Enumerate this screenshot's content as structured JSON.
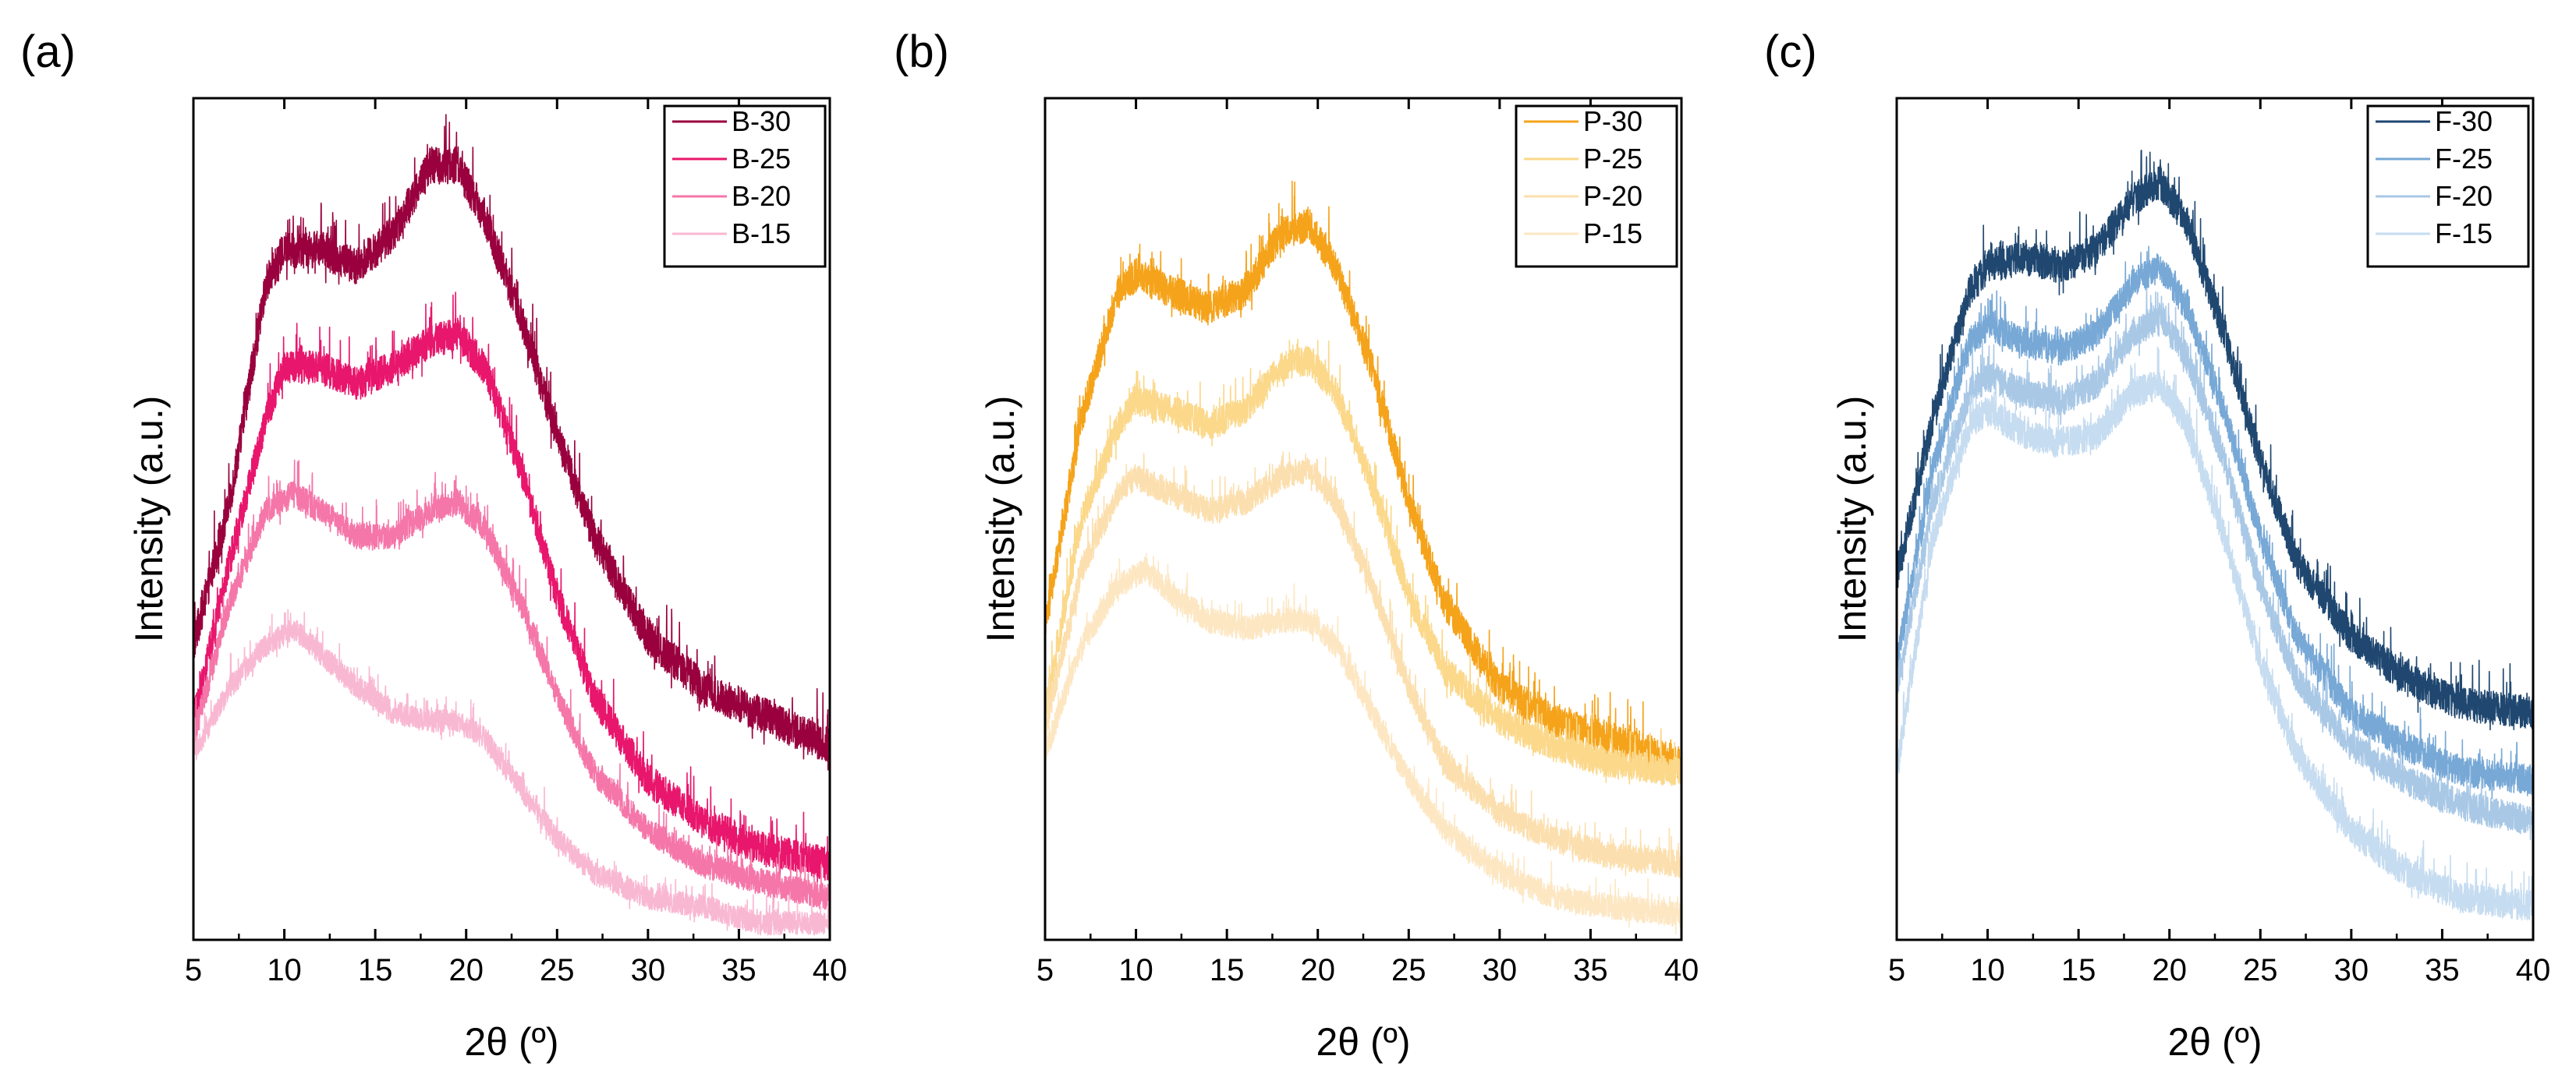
{
  "chart_data": [
    {
      "panel_label": "(a)",
      "type": "line",
      "xlabel": "2θ (º)",
      "ylabel": "Intensity (a.u.)",
      "xlim": [
        5,
        40
      ],
      "ylim": [
        0,
        100
      ],
      "xticks": [
        5,
        10,
        15,
        20,
        25,
        30,
        35,
        40
      ],
      "y_ticks_shown": false,
      "legend_position": "top-right",
      "series": [
        {
          "name": "B-30",
          "color": "#99003d",
          "x": [
            5,
            7,
            9,
            10,
            12,
            14,
            16,
            18,
            19.5,
            21,
            23,
            25,
            27,
            30,
            33,
            36,
            40
          ],
          "y": [
            35,
            52,
            78,
            82,
            82,
            80,
            84,
            92,
            92,
            86,
            74,
            60,
            48,
            36,
            30,
            27,
            23
          ],
          "noise": 2.2
        },
        {
          "name": "B-25",
          "color": "#e8166c",
          "x": [
            5,
            7,
            9,
            10,
            12,
            14,
            16,
            18,
            19.5,
            21,
            23,
            25,
            27,
            30,
            33,
            36,
            40
          ],
          "y": [
            26,
            45,
            62,
            68,
            68,
            66,
            68,
            71,
            72,
            68,
            56,
            41,
            29,
            19,
            14,
            11,
            9
          ],
          "noise": 2.0
        },
        {
          "name": "B-20",
          "color": "#f576a9",
          "x": [
            5,
            7,
            9,
            10.5,
            12,
            14,
            16,
            18,
            19.5,
            21,
            23,
            25,
            27,
            30,
            33,
            36,
            40
          ],
          "y": [
            24,
            40,
            51,
            53,
            51,
            48,
            48,
            51,
            52,
            49,
            40,
            29,
            20,
            13,
            9,
            7,
            5
          ],
          "noise": 1.6
        },
        {
          "name": "B-15",
          "color": "#f9b8d2",
          "x": [
            5,
            7,
            9,
            10.5,
            12,
            14,
            16,
            18,
            19.5,
            21,
            23,
            25,
            27,
            30,
            33,
            36,
            40
          ],
          "y": [
            22,
            30,
            35,
            37,
            34,
            30,
            27,
            26,
            26,
            24,
            18,
            12,
            8,
            5,
            4,
            2,
            2
          ],
          "noise": 1.4
        }
      ]
    },
    {
      "panel_label": "(b)",
      "type": "line",
      "xlabel": "2θ (º)",
      "ylabel": "Intensity (a.u.)",
      "xlim": [
        5,
        40
      ],
      "ylim": [
        0,
        100
      ],
      "xticks": [
        5,
        10,
        15,
        20,
        25,
        30,
        35,
        40
      ],
      "y_ticks_shown": false,
      "legend_position": "top-right",
      "series": [
        {
          "name": "P-30",
          "color": "#f5a31a",
          "x": [
            5,
            7,
            9,
            10,
            12,
            14,
            16,
            18,
            19.5,
            21,
            23,
            25,
            27,
            30,
            33,
            36,
            40
          ],
          "y": [
            37,
            62,
            77,
            79,
            77,
            75,
            77,
            84,
            85,
            80,
            68,
            52,
            40,
            30,
            26,
            24,
            21
          ],
          "noise": 2.0
        },
        {
          "name": "P-25",
          "color": "#fbd88a",
          "x": [
            5,
            7,
            9,
            10,
            12,
            14,
            16,
            18,
            19.5,
            21,
            23,
            25,
            27,
            30,
            33,
            36,
            40
          ],
          "y": [
            27,
            50,
            61,
            64,
            63,
            61,
            63,
            68,
            69,
            65,
            54,
            41,
            32,
            26,
            23,
            21,
            20
          ],
          "noise": 1.8
        },
        {
          "name": "P-20",
          "color": "#fcdfae",
          "x": [
            5,
            7,
            9,
            10,
            12,
            14,
            16,
            18,
            19.5,
            21,
            23,
            25,
            27,
            30,
            33,
            36,
            40
          ],
          "y": [
            25,
            44,
            53,
            55,
            53,
            51,
            52,
            55,
            56,
            52,
            42,
            30,
            21,
            15,
            12,
            10,
            9
          ],
          "noise": 1.6
        },
        {
          "name": "P-15",
          "color": "#fde7c3",
          "x": [
            5,
            7,
            9,
            10.5,
            12,
            14,
            16,
            18,
            19.5,
            21,
            23,
            25,
            27,
            30,
            33,
            36,
            40
          ],
          "y": [
            22,
            35,
            42,
            44,
            41,
            38,
            37,
            38,
            38,
            35,
            27,
            19,
            13,
            8,
            5,
            4,
            3
          ],
          "noise": 1.5
        }
      ]
    },
    {
      "panel_label": "(c)",
      "type": "line",
      "xlabel": "2θ (º)",
      "ylabel": "Intensity (a.u.)",
      "xlim": [
        5,
        40
      ],
      "ylim": [
        0,
        100
      ],
      "xticks": [
        5,
        10,
        15,
        20,
        25,
        30,
        35,
        40
      ],
      "y_ticks_shown": false,
      "legend_position": "top-right",
      "series": [
        {
          "name": "F-30",
          "color": "#1f4770",
          "x": [
            5,
            7,
            9,
            10,
            12,
            14,
            16,
            18,
            19.5,
            21,
            23,
            25,
            27,
            30,
            33,
            36,
            40
          ],
          "y": [
            43,
            62,
            77,
            80,
            81,
            80,
            82,
            88,
            90,
            85,
            72,
            57,
            45,
            36,
            31,
            28,
            27
          ],
          "noise": 2.0
        },
        {
          "name": "F-25",
          "color": "#77a8d6",
          "x": [
            5,
            7,
            9,
            10,
            12,
            14,
            16,
            18,
            19.5,
            21,
            23,
            25,
            27,
            30,
            33,
            36,
            40
          ],
          "y": [
            33,
            56,
            71,
            73,
            71,
            70,
            72,
            78,
            80,
            75,
            63,
            48,
            36,
            27,
            23,
            20,
            19
          ],
          "noise": 1.8
        },
        {
          "name": "F-20",
          "color": "#a9c8e6",
          "x": [
            5,
            7,
            9,
            10,
            12,
            14,
            16,
            18,
            19.5,
            21,
            23,
            25,
            27,
            30,
            33,
            36,
            40
          ],
          "y": [
            30,
            52,
            65,
            67,
            65,
            64,
            66,
            72,
            74,
            69,
            57,
            42,
            31,
            23,
            19,
            16,
            14
          ],
          "noise": 1.8
        },
        {
          "name": "F-15",
          "color": "#c6dcf0",
          "x": [
            5,
            7,
            9,
            10,
            12,
            14,
            16,
            18,
            19.5,
            21,
            23,
            25,
            27,
            30,
            33,
            36,
            40
          ],
          "y": [
            20,
            48,
            61,
            63,
            60,
            59,
            60,
            65,
            66,
            61,
            48,
            33,
            22,
            13,
            8,
            5,
            4
          ],
          "noise": 1.8
        }
      ]
    }
  ]
}
